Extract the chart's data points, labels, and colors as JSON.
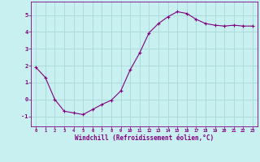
{
  "x": [
    0,
    1,
    2,
    3,
    4,
    5,
    6,
    7,
    8,
    9,
    10,
    11,
    12,
    13,
    14,
    15,
    16,
    17,
    18,
    19,
    20,
    21,
    22,
    23
  ],
  "y": [
    1.9,
    1.3,
    0.0,
    -0.7,
    -0.8,
    -0.9,
    -0.6,
    -0.3,
    -0.05,
    0.5,
    1.75,
    2.75,
    3.95,
    4.5,
    4.9,
    5.2,
    5.1,
    4.75,
    4.5,
    4.4,
    4.35,
    4.4,
    4.35,
    4.35
  ],
  "line_color": "#800080",
  "marker": "+",
  "marker_size": 3,
  "bg_color": "#c8f0f0",
  "grid_color": "#a8d8d8",
  "xlabel": "Windchill (Refroidissement éolien,°C)",
  "xlabel_color": "#800080",
  "tick_color": "#800080",
  "xlim": [
    -0.5,
    23.5
  ],
  "ylim": [
    -1.6,
    5.8
  ],
  "yticks": [
    -1,
    0,
    1,
    2,
    3,
    4,
    5
  ],
  "xticks": [
    0,
    1,
    2,
    3,
    4,
    5,
    6,
    7,
    8,
    9,
    10,
    11,
    12,
    13,
    14,
    15,
    16,
    17,
    18,
    19,
    20,
    21,
    22,
    23
  ]
}
